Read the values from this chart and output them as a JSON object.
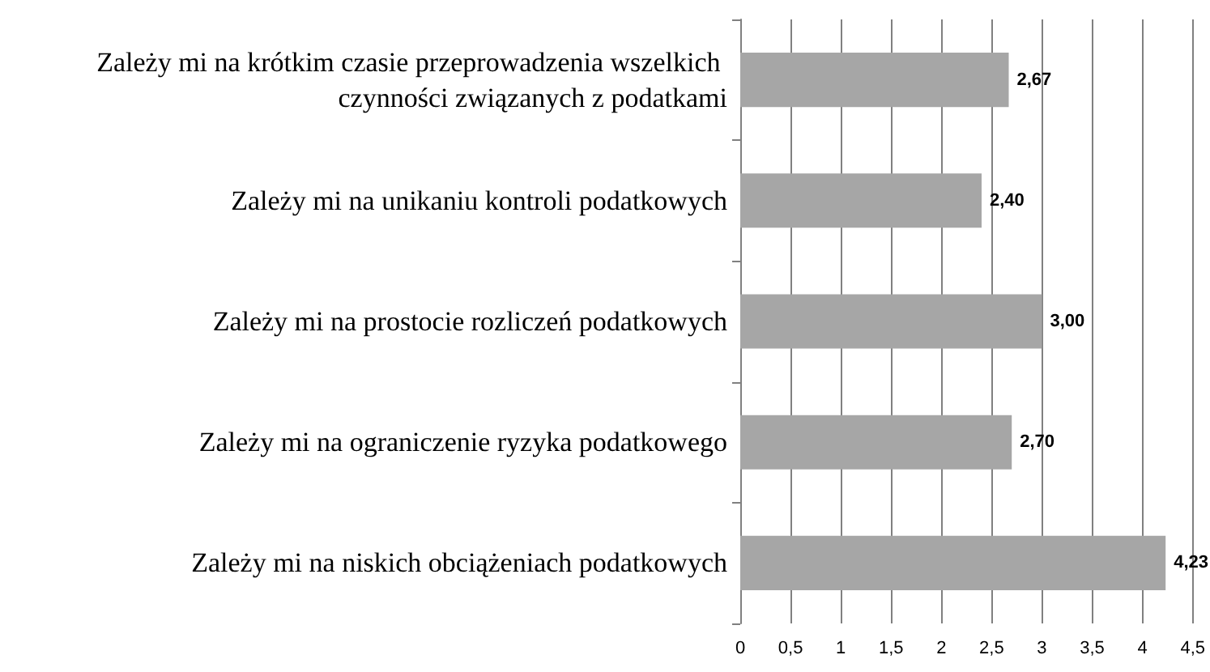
{
  "chart_data": {
    "type": "bar",
    "orientation": "horizontal",
    "categories": [
      "Zależy mi na krótkim czasie przeprowadzenia wszelkich czynności związanych z podatkami",
      "Zależy mi na unikaniu kontroli podatkowych",
      "Zależy mi na prostocie rozliczeń podatkowych",
      "Zależy mi na ograniczenie ryzyka podatkowego",
      "Zależy mi na niskich obciążeniach podatkowych"
    ],
    "values": [
      2.67,
      2.4,
      3.0,
      2.7,
      4.23
    ],
    "value_labels": [
      "2,67",
      "2,40",
      "3,00",
      "2,70",
      "4,23"
    ],
    "color": "#a6a6a6",
    "xlim": [
      0,
      4.5
    ],
    "xticks": [
      0,
      {
        "value": 0.5,
        "label": "0,5"
      },
      1,
      {
        "value": 1.5,
        "label": "1,5"
      },
      2,
      {
        "value": 2.5,
        "label": "2,5"
      },
      3,
      {
        "value": 3.5,
        "label": "3,5"
      },
      4,
      {
        "value": 4.5,
        "label": "4,5"
      }
    ],
    "grid": "x"
  }
}
